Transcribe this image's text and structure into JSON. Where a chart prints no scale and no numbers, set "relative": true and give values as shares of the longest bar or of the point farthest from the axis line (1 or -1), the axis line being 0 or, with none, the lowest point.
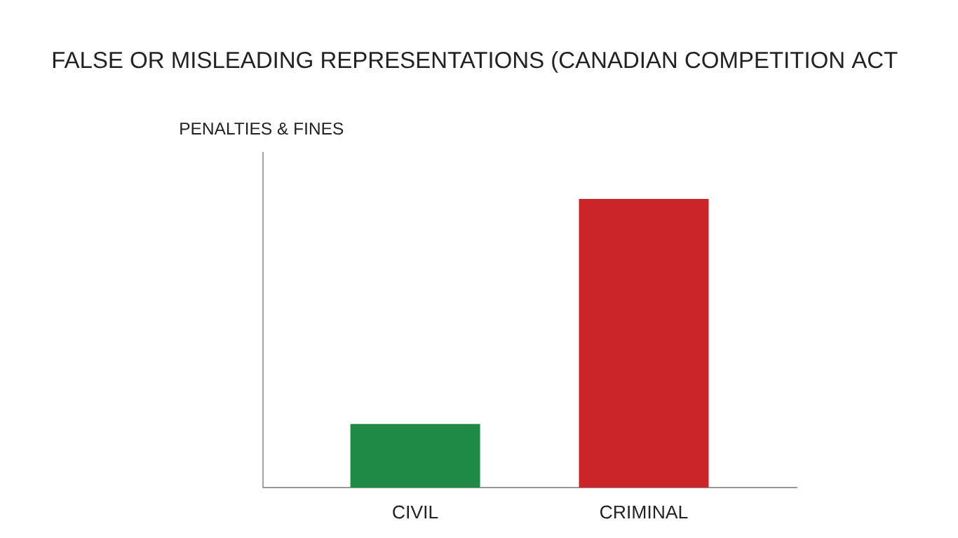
{
  "chart_data": {
    "type": "bar",
    "title": "FALSE OR MISLEADING REPRESENTATIONS (CANADIAN COMPETITION ACT",
    "ylabel": "PENALTIES & FINES",
    "categories": [
      "CIVIL",
      "CRIMINAL"
    ],
    "values": [
      0.22,
      1
    ],
    "colors": [
      "#1f8a45",
      "#cc2529"
    ],
    "relative": true
  }
}
